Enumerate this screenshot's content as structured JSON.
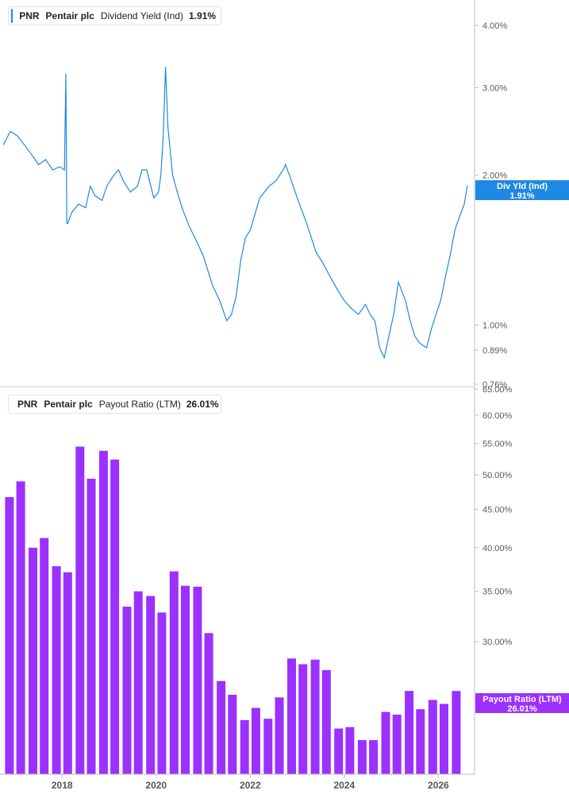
{
  "chart_data": [
    {
      "type": "line",
      "legend": {
        "ticker": "PNR",
        "company": "Pentair plc",
        "metric": "Dividend Yield (Ind)",
        "value": "1.91%"
      },
      "flag": {
        "label": "Div Yld (Ind)",
        "value": "1.91%"
      },
      "color": "#1e88e5",
      "y_scale": "log",
      "ylim": [
        0.76,
        4.5
      ],
      "ytick_labels": [
        "4.00%",
        "3.00%",
        "2.00%",
        "1.00%",
        "0.89%",
        "0.76%"
      ],
      "ytick_values": [
        4.0,
        3.0,
        2.0,
        1.0,
        0.89,
        0.76
      ],
      "series": [
        {
          "x": [
            2016.75,
            2016.9,
            2017.05,
            2017.2,
            2017.35,
            2017.5,
            2017.65,
            2017.8,
            2017.95,
            2018.05,
            2018.08,
            2018.1,
            2018.12,
            2018.2,
            2018.35,
            2018.5,
            2018.6,
            2018.7,
            2018.85,
            2018.95,
            2019.1,
            2019.2,
            2019.3,
            2019.45,
            2019.6,
            2019.7,
            2019.8,
            2019.95,
            2020.05,
            2020.1,
            2020.15,
            2020.2,
            2020.25,
            2020.35,
            2020.45,
            2020.55,
            2020.7,
            2020.85,
            2021.0,
            2021.2,
            2021.35,
            2021.5,
            2021.6,
            2021.7,
            2021.8,
            2021.9,
            2022.0,
            2022.2,
            2022.4,
            2022.55,
            2022.7,
            2022.75,
            2022.85,
            2023.0,
            2023.2,
            2023.4,
            2023.55,
            2023.7,
            2023.85,
            2024.0,
            2024.15,
            2024.3,
            2024.45,
            2024.55,
            2024.65,
            2024.75,
            2024.85,
            2024.95,
            2025.05,
            2025.15,
            2025.3,
            2025.4,
            2025.5,
            2025.6,
            2025.75,
            2025.85,
            2025.95,
            2026.05,
            2026.15,
            2026.25,
            2026.35,
            2026.45,
            2026.55,
            2026.62
          ],
          "y": [
            2.3,
            2.45,
            2.4,
            2.3,
            2.2,
            2.1,
            2.15,
            2.05,
            2.08,
            2.05,
            3.2,
            1.6,
            1.6,
            1.68,
            1.75,
            1.72,
            1.9,
            1.82,
            1.78,
            1.9,
            2.0,
            2.05,
            1.95,
            1.85,
            1.9,
            2.05,
            2.05,
            1.8,
            1.85,
            2.0,
            2.4,
            3.3,
            2.5,
            2.0,
            1.85,
            1.72,
            1.58,
            1.48,
            1.38,
            1.2,
            1.12,
            1.02,
            1.05,
            1.14,
            1.35,
            1.5,
            1.55,
            1.8,
            1.9,
            1.95,
            2.05,
            2.1,
            1.98,
            1.8,
            1.6,
            1.4,
            1.33,
            1.25,
            1.18,
            1.12,
            1.08,
            1.05,
            1.1,
            1.05,
            1.02,
            0.9,
            0.86,
            0.95,
            1.05,
            1.22,
            1.12,
            1.02,
            0.95,
            0.92,
            0.9,
            0.98,
            1.05,
            1.12,
            1.25,
            1.38,
            1.55,
            1.65,
            1.75,
            1.91
          ]
        }
      ]
    },
    {
      "type": "bar",
      "legend": {
        "ticker": "PNR",
        "company": "Pentair plc",
        "metric": "Payout Ratio (LTM)",
        "value": "26.01%"
      },
      "flag": {
        "label": "Payout Ratio (LTM)",
        "value": "26.01%"
      },
      "color": "#9b30ff",
      "y_scale": "log",
      "ylim": [
        20.0,
        65.0
      ],
      "ytick_labels": [
        "65.00%",
        "60.00%",
        "55.00%",
        "50.00%",
        "45.00%",
        "40.00%",
        "35.00%",
        "30.00%",
        "25.00%"
      ],
      "ytick_values": [
        65,
        60,
        55,
        50,
        45,
        40,
        35,
        30,
        25
      ],
      "x": [
        2016.88,
        2017.12,
        2017.38,
        2017.62,
        2017.88,
        2018.12,
        2018.38,
        2018.62,
        2018.88,
        2019.12,
        2019.38,
        2019.62,
        2019.88,
        2020.12,
        2020.38,
        2020.62,
        2020.88,
        2021.12,
        2021.38,
        2021.62,
        2021.88,
        2022.12,
        2022.38,
        2022.62,
        2022.88,
        2023.12,
        2023.38,
        2023.62,
        2023.88,
        2024.12,
        2024.38,
        2024.62,
        2024.88,
        2025.12,
        2025.38,
        2025.62,
        2025.88,
        2026.12,
        2026.38
      ],
      "values": [
        46.7,
        49.0,
        40.0,
        41.2,
        37.8,
        37.1,
        54.5,
        49.4,
        53.8,
        52.4,
        33.4,
        35.0,
        34.5,
        32.8,
        37.2,
        35.6,
        35.5,
        30.8,
        26.6,
        25.5,
        23.6,
        24.5,
        23.7,
        25.3,
        28.5,
        28.0,
        28.4,
        27.5,
        23.0,
        23.1,
        22.2,
        22.2,
        24.2,
        24.0,
        25.8,
        24.4,
        25.1,
        24.8,
        25.8
      ]
    }
  ],
  "x_axis": {
    "ticks": [
      2018,
      2020,
      2022,
      2024,
      2026
    ],
    "labels": [
      "2018",
      "2020",
      "2022",
      "2024",
      "2026"
    ],
    "range": [
      2016.68,
      2026.77
    ]
  }
}
